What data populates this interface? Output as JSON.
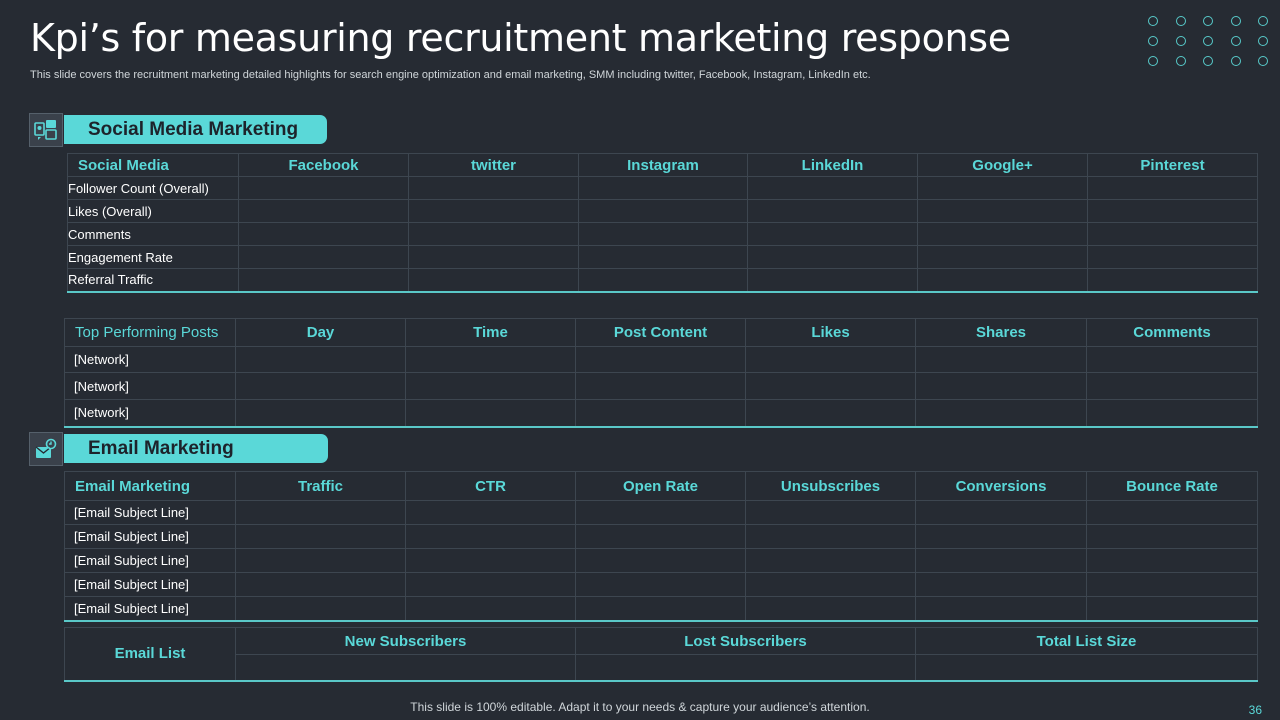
{
  "title": "Kpi’s for measuring recruitment marketing response",
  "subtitle": "This slide covers the recruitment marketing detailed highlights for search engine optimization and email marketing, SMM including twitter, Facebook, Instagram, LinkedIn etc.",
  "social_section": {
    "label": "Social Media Marketing",
    "icon": "social-media-icon"
  },
  "email_section": {
    "label": "Email Marketing",
    "icon": "email-icon"
  },
  "social_table": {
    "headers": [
      "Social Media",
      "Facebook",
      "twitter",
      "Instagram",
      "LinkedIn",
      "Google+",
      "Pinterest"
    ],
    "rows": [
      "Follower Count (Overall)",
      "Likes (Overall)",
      "Comments",
      "Engagement Rate",
      "Referral Traffic"
    ]
  },
  "posts_table": {
    "headers": [
      "Top Performing Posts",
      "Day",
      "Time",
      "Post Content",
      "Likes",
      "Shares",
      "Comments"
    ],
    "rows": [
      "[Network]",
      "[Network]",
      "[Network]"
    ]
  },
  "email_table": {
    "headers": [
      "Email Marketing",
      "Traffic",
      "CTR",
      "Open Rate",
      "Unsubscribes",
      "Conversions",
      "Bounce Rate"
    ],
    "rows": [
      "[Email Subject Line]",
      "[Email Subject Line]",
      "[Email Subject Line]",
      "[Email Subject Line]",
      "[Email Subject Line]"
    ]
  },
  "list_table": {
    "label": "Email List",
    "headers": [
      "New Subscribers",
      "Lost Subscribers",
      "Total List Size"
    ]
  },
  "footer": "This slide is 100% editable. Adapt it to your needs & capture your audience’s attention.",
  "page_number": "36",
  "colors": {
    "background": "#262b33",
    "accent": "#5ad8d8"
  }
}
